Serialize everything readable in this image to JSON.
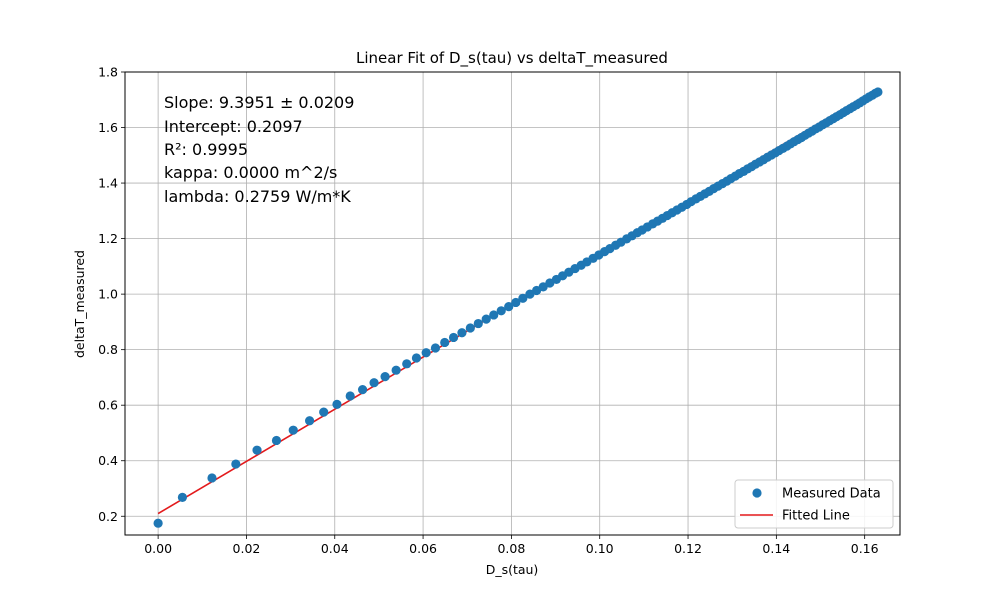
{
  "chart_data": {
    "type": "scatter",
    "title": "Linear Fit of D_s(tau) vs deltaT_measured",
    "xlabel": "D_s(tau)",
    "ylabel": "deltaT_measured",
    "xlim": [
      -0.0075,
      0.168
    ],
    "ylim": [
      0.1325,
      1.8
    ],
    "xticks": [
      0.0,
      0.02,
      0.04,
      0.06,
      0.08,
      0.1,
      0.12,
      0.14,
      0.16
    ],
    "xtick_labels": [
      "0.00",
      "0.02",
      "0.04",
      "0.06",
      "0.08",
      "0.10",
      "0.12",
      "0.14",
      "0.16"
    ],
    "yticks": [
      0.2,
      0.4,
      0.6,
      0.8,
      1.0,
      1.2,
      1.4,
      1.6,
      1.8
    ],
    "ytick_labels": [
      "0.2",
      "0.4",
      "0.6",
      "0.8",
      "1.0",
      "1.2",
      "1.4",
      "1.6",
      "1.8"
    ],
    "grid": true,
    "legend_position": "bottom-right",
    "series": [
      {
        "name": "Measured Data",
        "kind": "scatter",
        "color": "#1f77b4",
        "points": [
          [
            0.0,
            0.175
          ],
          [
            0.0055,
            0.268
          ],
          [
            0.0122,
            0.338
          ],
          [
            0.0176,
            0.388
          ],
          [
            0.0224,
            0.438
          ],
          [
            0.0268,
            0.473
          ],
          [
            0.0306,
            0.51
          ],
          [
            0.0343,
            0.544
          ],
          [
            0.0375,
            0.575
          ],
          [
            0.0405,
            0.603
          ],
          [
            0.0435,
            0.633
          ],
          [
            0.0463,
            0.656
          ],
          [
            0.0489,
            0.681
          ],
          [
            0.0514,
            0.703
          ],
          [
            0.0539,
            0.726
          ],
          [
            0.0563,
            0.749
          ],
          [
            0.0585,
            0.77
          ],
          [
            0.0607,
            0.789
          ],
          [
            0.0628,
            0.806
          ],
          [
            0.0649,
            0.826
          ],
          [
            0.0669,
            0.844
          ],
          [
            0.0688,
            0.861
          ],
          [
            0.0707,
            0.878
          ],
          [
            0.0725,
            0.894
          ],
          [
            0.0743,
            0.91
          ],
          [
            0.076,
            0.925
          ],
          [
            0.0777,
            0.94
          ],
          [
            0.0794,
            0.955
          ],
          [
            0.081,
            0.97
          ],
          [
            0.0826,
            0.985
          ],
          [
            0.0842,
            1.0
          ],
          [
            0.0857,
            1.013
          ],
          [
            0.0872,
            1.026
          ],
          [
            0.0887,
            1.04
          ],
          [
            0.0902,
            1.053
          ],
          [
            0.0916,
            1.066
          ],
          [
            0.093,
            1.079
          ],
          [
            0.0944,
            1.092
          ],
          [
            0.0958,
            1.104
          ],
          [
            0.0971,
            1.116
          ],
          [
            0.0985,
            1.129
          ],
          [
            0.0998,
            1.141
          ],
          [
            0.1011,
            1.153
          ],
          [
            0.1023,
            1.164
          ],
          [
            0.1036,
            1.176
          ],
          [
            0.1048,
            1.187
          ],
          [
            0.1061,
            1.199
          ],
          [
            0.1073,
            1.21
          ],
          [
            0.1085,
            1.221
          ],
          [
            0.1096,
            1.231
          ],
          [
            0.1108,
            1.242
          ],
          [
            0.112,
            1.253
          ],
          [
            0.1131,
            1.263
          ],
          [
            0.1142,
            1.273
          ],
          [
            0.1153,
            1.283
          ],
          [
            0.1164,
            1.293
          ],
          [
            0.1175,
            1.303
          ],
          [
            0.1186,
            1.313
          ],
          [
            0.1197,
            1.323
          ],
          [
            0.1207,
            1.333
          ],
          [
            0.1218,
            1.343
          ],
          [
            0.1228,
            1.352
          ],
          [
            0.1238,
            1.361
          ],
          [
            0.1248,
            1.37
          ],
          [
            0.1258,
            1.38
          ],
          [
            0.1268,
            1.389
          ],
          [
            0.1278,
            1.398
          ],
          [
            0.1288,
            1.407
          ],
          [
            0.1297,
            1.416
          ],
          [
            0.1307,
            1.425
          ],
          [
            0.1316,
            1.434
          ],
          [
            0.1326,
            1.442
          ],
          [
            0.1335,
            1.451
          ],
          [
            0.1344,
            1.459
          ],
          [
            0.1353,
            1.468
          ],
          [
            0.1362,
            1.476
          ],
          [
            0.1371,
            1.484
          ],
          [
            0.138,
            1.493
          ],
          [
            0.1389,
            1.501
          ],
          [
            0.1398,
            1.509
          ],
          [
            0.1406,
            1.517
          ],
          [
            0.1415,
            1.525
          ],
          [
            0.1424,
            1.533
          ],
          [
            0.1432,
            1.541
          ],
          [
            0.144,
            1.549
          ],
          [
            0.1449,
            1.557
          ],
          [
            0.1457,
            1.564
          ],
          [
            0.1465,
            1.572
          ],
          [
            0.1473,
            1.58
          ],
          [
            0.1481,
            1.587
          ],
          [
            0.1489,
            1.595
          ],
          [
            0.1497,
            1.602
          ],
          [
            0.1505,
            1.61
          ],
          [
            0.1513,
            1.617
          ],
          [
            0.1521,
            1.625
          ],
          [
            0.1529,
            1.632
          ],
          [
            0.1536,
            1.639
          ],
          [
            0.1544,
            1.646
          ],
          [
            0.1552,
            1.654
          ],
          [
            0.1559,
            1.661
          ],
          [
            0.1567,
            1.668
          ],
          [
            0.1574,
            1.675
          ],
          [
            0.1582,
            1.682
          ],
          [
            0.1589,
            1.689
          ],
          [
            0.1596,
            1.696
          ],
          [
            0.1603,
            1.703
          ],
          [
            0.161,
            1.71
          ],
          [
            0.1617,
            1.716
          ],
          [
            0.1624,
            1.723
          ],
          [
            0.163,
            1.728
          ]
        ]
      },
      {
        "name": "Fitted Line",
        "kind": "line",
        "color": "#e31a1c",
        "slope": 9.3951,
        "intercept": 0.2097,
        "x_range": [
          0.0,
          0.16
        ]
      }
    ],
    "annotations": [
      "Slope: 9.3951 ± 0.0209",
      "Intercept: 0.2097",
      "R²: 0.9995",
      "kappa: 0.0000 m^2/s",
      "lambda: 0.2759 W/m*K"
    ]
  }
}
